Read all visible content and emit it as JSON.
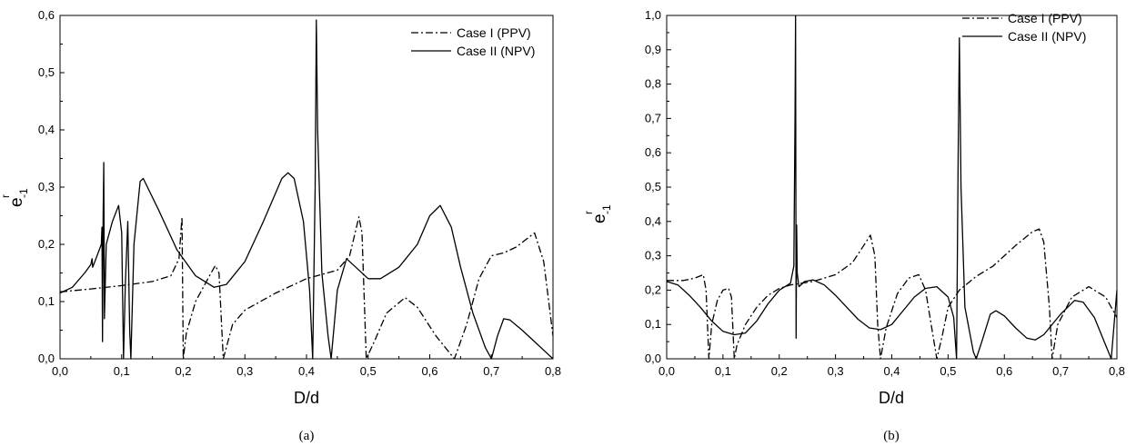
{
  "chart_data": [
    {
      "type": "line",
      "caption": "(a)",
      "xlabel": "D/d",
      "ylabel": {
        "base": "e",
        "sup": "r",
        "sub": "-1"
      },
      "xlim": [
        0,
        0.8
      ],
      "ylim": [
        0,
        0.6
      ],
      "xticks": [
        "0,0",
        "0,1",
        "0,2",
        "0,3",
        "0,4",
        "0,5",
        "0,6",
        "0,7",
        "0,8"
      ],
      "yticks": [
        "0,0",
        "0,1",
        "0,2",
        "0,3",
        "0,4",
        "0,5",
        "0,6"
      ],
      "legend_position": "top-right",
      "series": [
        {
          "name": "Case I (PPV)",
          "style": "dash-dot",
          "points": [
            [
              0.0,
              0.117
            ],
            [
              0.05,
              0.122
            ],
            [
              0.1,
              0.128
            ],
            [
              0.15,
              0.135
            ],
            [
              0.18,
              0.145
            ],
            [
              0.193,
              0.175
            ],
            [
              0.198,
              0.248
            ],
            [
              0.2,
              0.0
            ],
            [
              0.205,
              0.045
            ],
            [
              0.22,
              0.1
            ],
            [
              0.24,
              0.14
            ],
            [
              0.252,
              0.163
            ],
            [
              0.258,
              0.15
            ],
            [
              0.265,
              0.0
            ],
            [
              0.28,
              0.06
            ],
            [
              0.3,
              0.085
            ],
            [
              0.35,
              0.115
            ],
            [
              0.4,
              0.14
            ],
            [
              0.45,
              0.155
            ],
            [
              0.47,
              0.18
            ],
            [
              0.485,
              0.248
            ],
            [
              0.49,
              0.22
            ],
            [
              0.497,
              0.0
            ],
            [
              0.51,
              0.03
            ],
            [
              0.53,
              0.08
            ],
            [
              0.56,
              0.107
            ],
            [
              0.58,
              0.09
            ],
            [
              0.61,
              0.04
            ],
            [
              0.64,
              0.0
            ],
            [
              0.66,
              0.06
            ],
            [
              0.68,
              0.14
            ],
            [
              0.7,
              0.18
            ],
            [
              0.72,
              0.185
            ],
            [
              0.74,
              0.195
            ],
            [
              0.77,
              0.22
            ],
            [
              0.785,
              0.17
            ],
            [
              0.8,
              0.04
            ]
          ]
        },
        {
          "name": "Case II (NPV)",
          "style": "solid",
          "points": [
            [
              0.0,
              0.115
            ],
            [
              0.02,
              0.125
            ],
            [
              0.04,
              0.15
            ],
            [
              0.05,
              0.165
            ],
            [
              0.052,
              0.175
            ],
            [
              0.053,
              0.16
            ],
            [
              0.06,
              0.18
            ],
            [
              0.067,
              0.2
            ],
            [
              0.068,
              0.23
            ],
            [
              0.069,
              0.03
            ],
            [
              0.07,
              0.25
            ],
            [
              0.071,
              0.343
            ],
            [
              0.072,
              0.07
            ],
            [
              0.075,
              0.2
            ],
            [
              0.085,
              0.24
            ],
            [
              0.095,
              0.268
            ],
            [
              0.1,
              0.22
            ],
            [
              0.103,
              0.0
            ],
            [
              0.106,
              0.13
            ],
            [
              0.11,
              0.24
            ],
            [
              0.113,
              0.05
            ],
            [
              0.115,
              0.0
            ],
            [
              0.12,
              0.2
            ],
            [
              0.13,
              0.31
            ],
            [
              0.135,
              0.315
            ],
            [
              0.16,
              0.26
            ],
            [
              0.19,
              0.19
            ],
            [
              0.22,
              0.145
            ],
            [
              0.25,
              0.125
            ],
            [
              0.27,
              0.13
            ],
            [
              0.3,
              0.17
            ],
            [
              0.33,
              0.24
            ],
            [
              0.36,
              0.315
            ],
            [
              0.37,
              0.325
            ],
            [
              0.38,
              0.315
            ],
            [
              0.395,
              0.24
            ],
            [
              0.405,
              0.12
            ],
            [
              0.41,
              0.0
            ],
            [
              0.414,
              0.3
            ],
            [
              0.416,
              0.592
            ],
            [
              0.418,
              0.4
            ],
            [
              0.425,
              0.15
            ],
            [
              0.435,
              0.04
            ],
            [
              0.44,
              0.0
            ],
            [
              0.45,
              0.12
            ],
            [
              0.465,
              0.175
            ],
            [
              0.48,
              0.16
            ],
            [
              0.5,
              0.14
            ],
            [
              0.52,
              0.14
            ],
            [
              0.55,
              0.16
            ],
            [
              0.58,
              0.2
            ],
            [
              0.6,
              0.25
            ],
            [
              0.617,
              0.268
            ],
            [
              0.635,
              0.23
            ],
            [
              0.65,
              0.16
            ],
            [
              0.67,
              0.08
            ],
            [
              0.69,
              0.02
            ],
            [
              0.7,
              0.0
            ],
            [
              0.71,
              0.04
            ],
            [
              0.72,
              0.07
            ],
            [
              0.73,
              0.068
            ],
            [
              0.75,
              0.05
            ],
            [
              0.77,
              0.03
            ],
            [
              0.79,
              0.01
            ],
            [
              0.8,
              0.0
            ]
          ]
        }
      ]
    },
    {
      "type": "line",
      "caption": "(b)",
      "xlabel": "D/d",
      "ylabel": {
        "base": "e",
        "sup": "r",
        "sub": "-1"
      },
      "xlim": [
        0,
        0.8
      ],
      "ylim": [
        0,
        1.0
      ],
      "xticks": [
        "0,0",
        "0,1",
        "0,2",
        "0,3",
        "0,4",
        "0,5",
        "0,6",
        "0,7",
        "0,8"
      ],
      "yticks": [
        "0,0",
        "0,1",
        "0,2",
        "0,3",
        "0,4",
        "0,5",
        "0,6",
        "0,7",
        "0,8",
        "0,9",
        "1,0"
      ],
      "legend_position": "top-right",
      "series": [
        {
          "name": "Case I (PPV)",
          "style": "dash-dot",
          "points": [
            [
              0.0,
              0.228
            ],
            [
              0.03,
              0.228
            ],
            [
              0.05,
              0.235
            ],
            [
              0.065,
              0.245
            ],
            [
              0.07,
              0.2
            ],
            [
              0.075,
              0.0
            ],
            [
              0.08,
              0.1
            ],
            [
              0.09,
              0.17
            ],
            [
              0.1,
              0.2
            ],
            [
              0.11,
              0.205
            ],
            [
              0.115,
              0.18
            ],
            [
              0.12,
              0.0
            ],
            [
              0.125,
              0.04
            ],
            [
              0.14,
              0.1
            ],
            [
              0.16,
              0.15
            ],
            [
              0.18,
              0.185
            ],
            [
              0.2,
              0.205
            ],
            [
              0.22,
              0.215
            ],
            [
              0.24,
              0.22
            ],
            [
              0.26,
              0.225
            ],
            [
              0.3,
              0.245
            ],
            [
              0.33,
              0.28
            ],
            [
              0.35,
              0.33
            ],
            [
              0.362,
              0.36
            ],
            [
              0.37,
              0.3
            ],
            [
              0.375,
              0.1
            ],
            [
              0.38,
              0.0
            ],
            [
              0.39,
              0.09
            ],
            [
              0.41,
              0.19
            ],
            [
              0.43,
              0.235
            ],
            [
              0.448,
              0.245
            ],
            [
              0.46,
              0.2
            ],
            [
              0.47,
              0.1
            ],
            [
              0.48,
              0.0
            ],
            [
              0.49,
              0.07
            ],
            [
              0.5,
              0.15
            ],
            [
              0.52,
              0.2
            ],
            [
              0.55,
              0.24
            ],
            [
              0.58,
              0.27
            ],
            [
              0.62,
              0.33
            ],
            [
              0.65,
              0.37
            ],
            [
              0.662,
              0.378
            ],
            [
              0.67,
              0.34
            ],
            [
              0.68,
              0.15
            ],
            [
              0.685,
              0.0
            ],
            [
              0.695,
              0.1
            ],
            [
              0.72,
              0.18
            ],
            [
              0.75,
              0.21
            ],
            [
              0.78,
              0.18
            ],
            [
              0.8,
              0.12
            ]
          ]
        },
        {
          "name": "Case II (NPV)",
          "style": "solid",
          "points": [
            [
              0.0,
              0.225
            ],
            [
              0.02,
              0.215
            ],
            [
              0.04,
              0.185
            ],
            [
              0.06,
              0.15
            ],
            [
              0.08,
              0.11
            ],
            [
              0.1,
              0.08
            ],
            [
              0.12,
              0.07
            ],
            [
              0.14,
              0.075
            ],
            [
              0.16,
              0.11
            ],
            [
              0.18,
              0.16
            ],
            [
              0.2,
              0.2
            ],
            [
              0.22,
              0.22
            ],
            [
              0.226,
              0.27
            ],
            [
              0.228,
              0.7
            ],
            [
              0.229,
              0.998
            ],
            [
              0.23,
              0.06
            ],
            [
              0.231,
              0.39
            ],
            [
              0.232,
              0.25
            ],
            [
              0.235,
              0.21
            ],
            [
              0.245,
              0.225
            ],
            [
              0.26,
              0.23
            ],
            [
              0.28,
              0.215
            ],
            [
              0.3,
              0.185
            ],
            [
              0.32,
              0.15
            ],
            [
              0.34,
              0.115
            ],
            [
              0.36,
              0.09
            ],
            [
              0.38,
              0.085
            ],
            [
              0.4,
              0.1
            ],
            [
              0.42,
              0.14
            ],
            [
              0.44,
              0.18
            ],
            [
              0.46,
              0.205
            ],
            [
              0.48,
              0.21
            ],
            [
              0.5,
              0.18
            ],
            [
              0.51,
              0.12
            ],
            [
              0.515,
              0.0
            ],
            [
              0.518,
              0.6
            ],
            [
              0.52,
              0.935
            ],
            [
              0.523,
              0.5
            ],
            [
              0.53,
              0.15
            ],
            [
              0.545,
              0.02
            ],
            [
              0.55,
              0.0
            ],
            [
              0.56,
              0.05
            ],
            [
              0.575,
              0.13
            ],
            [
              0.585,
              0.14
            ],
            [
              0.6,
              0.125
            ],
            [
              0.62,
              0.09
            ],
            [
              0.64,
              0.06
            ],
            [
              0.655,
              0.055
            ],
            [
              0.67,
              0.07
            ],
            [
              0.7,
              0.13
            ],
            [
              0.725,
              0.17
            ],
            [
              0.74,
              0.165
            ],
            [
              0.76,
              0.12
            ],
            [
              0.78,
              0.04
            ],
            [
              0.79,
              0.0
            ],
            [
              0.8,
              0.2
            ]
          ]
        }
      ]
    }
  ]
}
